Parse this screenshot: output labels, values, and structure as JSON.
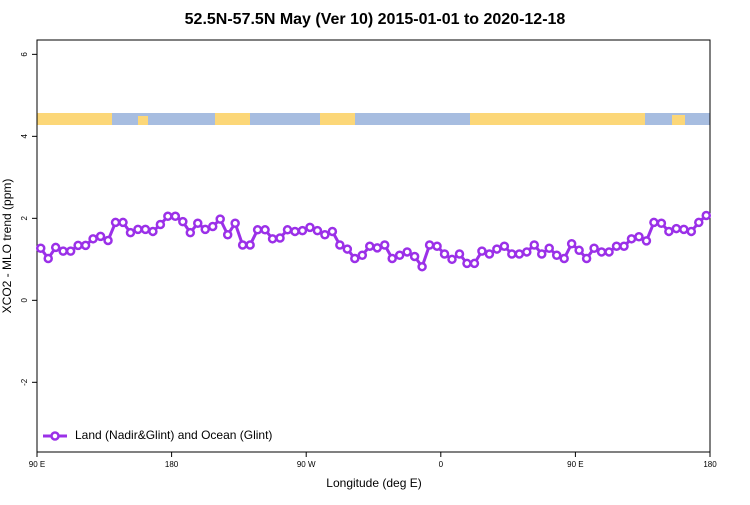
{
  "chart_data": {
    "type": "line",
    "title": "52.5N-57.5N May (Ver 10)   2015-01-01 to 2020-12-18",
    "x_label": "Longitude (deg E)",
    "y_label": "XCO2 - MLO trend (ppm)",
    "xlim": [
      90,
      540
    ],
    "ylim": [
      -3.7,
      6.35
    ],
    "xticks": [
      {
        "value": 90,
        "label": "90 E"
      },
      {
        "value": 180,
        "label": "180"
      },
      {
        "value": 270,
        "label": "90 W"
      },
      {
        "value": 360,
        "label": "0"
      },
      {
        "value": 450,
        "label": "90 E"
      },
      {
        "value": 540,
        "label": "180"
      }
    ],
    "yticks": [
      -2,
      0,
      2,
      4,
      6
    ],
    "legend_position": "bottom-left",
    "x": [
      92.5,
      97.5,
      102.5,
      107.5,
      112.5,
      117.5,
      122.5,
      127.5,
      132.5,
      137.5,
      142.5,
      147.5,
      152.5,
      157.5,
      162.5,
      167.5,
      172.5,
      177.5,
      182.5,
      187.5,
      192.5,
      197.5,
      202.5,
      207.5,
      212.5,
      217.5,
      222.5,
      227.5,
      232.5,
      237.5,
      242.5,
      247.5,
      252.5,
      257.5,
      262.5,
      267.5,
      272.5,
      277.5,
      282.5,
      287.5,
      292.5,
      297.5,
      302.5,
      307.5,
      312.5,
      317.5,
      322.5,
      327.5,
      332.5,
      337.5,
      342.5,
      347.5,
      352.5,
      357.5,
      362.5,
      367.5,
      372.5,
      377.5,
      382.5,
      387.5,
      392.5,
      397.5,
      402.5,
      407.5,
      412.5,
      417.5,
      422.5,
      427.5,
      432.5,
      437.5,
      442.5,
      447.5,
      452.5,
      457.5,
      462.5,
      467.5,
      472.5,
      477.5,
      482.5,
      487.5,
      492.5,
      497.5,
      502.5,
      507.5,
      512.5,
      517.5,
      522.5,
      527.5,
      532.5,
      537.5
    ],
    "series": [
      {
        "name": "Land (Nadir&Glint) and Ocean (Glint)",
        "color": "#9b30e8",
        "values": [
          1.27,
          1.02,
          1.29,
          1.2,
          1.2,
          1.34,
          1.34,
          1.5,
          1.56,
          1.46,
          1.9,
          1.9,
          1.65,
          1.73,
          1.73,
          1.68,
          1.85,
          2.05,
          2.05,
          1.92,
          1.65,
          1.88,
          1.73,
          1.8,
          1.98,
          1.6,
          1.88,
          1.35,
          1.35,
          1.72,
          1.72,
          1.5,
          1.52,
          1.72,
          1.68,
          1.7,
          1.78,
          1.7,
          1.6,
          1.68,
          1.35,
          1.25,
          1.02,
          1.1,
          1.32,
          1.28,
          1.35,
          1.02,
          1.1,
          1.18,
          1.07,
          0.82,
          1.35,
          1.32,
          1.13,
          1.0,
          1.13,
          0.9,
          0.9,
          1.2,
          1.13,
          1.25,
          1.32,
          1.13,
          1.13,
          1.18,
          1.35,
          1.13,
          1.27,
          1.1,
          1.02,
          1.38,
          1.22,
          1.02,
          1.27,
          1.18,
          1.18,
          1.32,
          1.32,
          1.5,
          1.55,
          1.45,
          1.9,
          1.88,
          1.68,
          1.75,
          1.73,
          1.68,
          1.9,
          2.07
        ]
      }
    ]
  }
}
